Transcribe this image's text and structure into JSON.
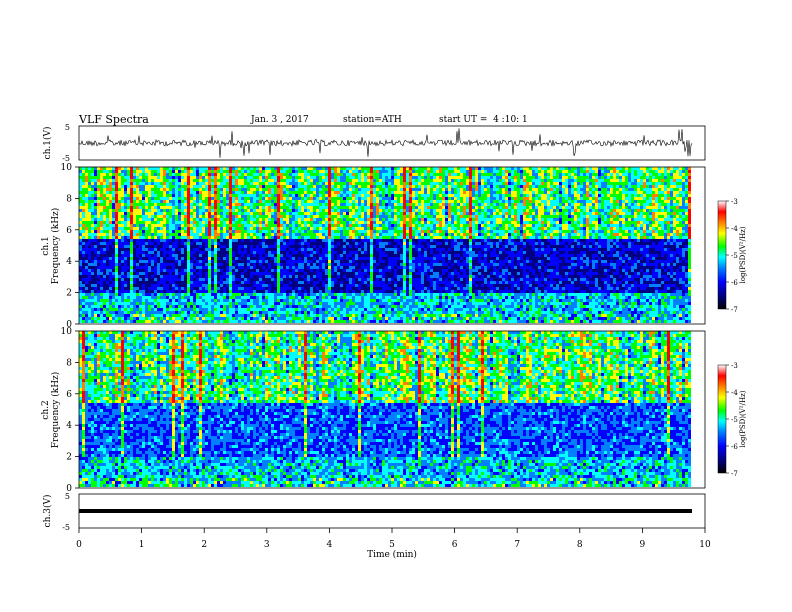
{
  "header": {
    "title": "VLF Spectra",
    "date": "Jan. 3 , 2017",
    "station": "station=ATH",
    "start_ut": "start UT =  4 :10: 1"
  },
  "chart_data": [
    {
      "type": "line",
      "panel": "ch1-waveform",
      "ylabel": "ch.1(V)",
      "yticks": [
        "5",
        "-5"
      ],
      "ylim": [
        -5,
        5
      ],
      "xlim": [
        0,
        10
      ]
    },
    {
      "type": "heatmap",
      "panel": "ch1-spectrogram",
      "ylabel_line1": "ch.1",
      "ylabel_line2": "Frequency (kHz)",
      "yticks": [
        "0",
        "2",
        "4",
        "6",
        "8",
        "10"
      ],
      "ylim": [
        0,
        10
      ],
      "xlim": [
        0,
        10
      ],
      "colorbar": {
        "label": "log(PSD)(V²/Hz)",
        "ticks": [
          "-3",
          "-4",
          "-5",
          "-6",
          "-7"
        ],
        "range": [
          -7,
          -3
        ]
      }
    },
    {
      "type": "heatmap",
      "panel": "ch2-spectrogram",
      "ylabel_line1": "ch.2",
      "ylabel_line2": "Frequency (kHz)",
      "yticks": [
        "0",
        "2",
        "4",
        "6",
        "8",
        "10"
      ],
      "ylim": [
        0,
        10
      ],
      "xlim": [
        0,
        10
      ],
      "colorbar": {
        "label": "log(PSD)(V²/Hz)",
        "ticks": [
          "-3",
          "-4",
          "-5",
          "-6",
          "-7"
        ],
        "range": [
          -7,
          -3
        ]
      }
    },
    {
      "type": "line",
      "panel": "ch3-waveform",
      "ylabel": "ch.3(V)",
      "yticks": [
        "5",
        "-5"
      ],
      "ylim": [
        -5,
        5
      ],
      "xlim": [
        0,
        10
      ],
      "xlabel": "Time (min)",
      "xticks": [
        "0",
        "1",
        "2",
        "3",
        "4",
        "5",
        "6",
        "7",
        "8",
        "9",
        "10"
      ]
    }
  ],
  "colors": {
    "colormap": [
      "#000000",
      "#000080",
      "#0000ff",
      "#0080ff",
      "#00ffff",
      "#00ff00",
      "#ffff00",
      "#ff8000",
      "#ff0000",
      "#ffffff"
    ],
    "trace": "#000000"
  }
}
